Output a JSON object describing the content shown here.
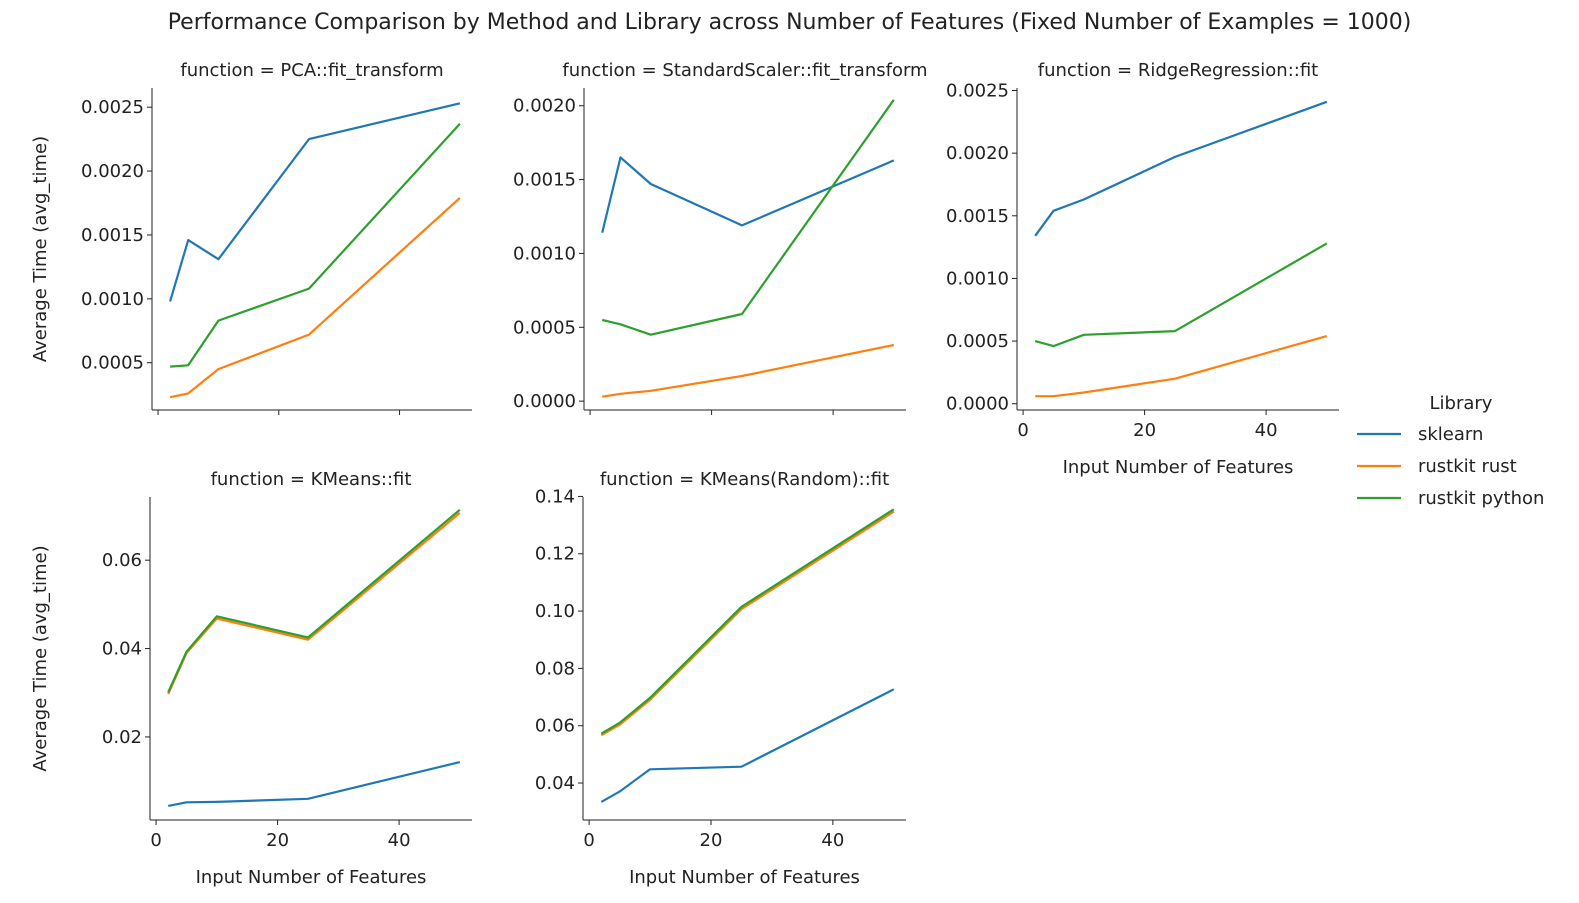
{
  "figure_title": "Performance Comparison by Method and Library across Number of Features (Fixed Number of Examples = 1000)",
  "legend": {
    "title": "Library",
    "entries": [
      {
        "name": "sklearn",
        "color": "#1f77b4"
      },
      {
        "name": "rustkit rust",
        "color": "#ff7f0e"
      },
      {
        "name": "rustkit python",
        "color": "#2ca02c"
      }
    ]
  },
  "chart_data": [
    {
      "type": "line",
      "title": "function = PCA::fit_transform",
      "xlabel": "",
      "ylabel": "Average Time (avg_time)",
      "xlim": [
        -1,
        52
      ],
      "ylim": [
        0.00013,
        0.00265
      ],
      "xticks": [
        0,
        20,
        40
      ],
      "xtick_labels": [
        "",
        "",
        ""
      ],
      "yticks": [
        0.0005,
        0.001,
        0.0015,
        0.002,
        0.0025
      ],
      "ytick_labels": [
        "0.0005",
        "0.0010",
        "0.0015",
        "0.0020",
        "0.0025"
      ],
      "x": [
        2,
        5,
        10,
        25,
        50
      ],
      "series": [
        {
          "name": "sklearn",
          "values": [
            0.00098,
            0.00146,
            0.00131,
            0.00225,
            0.00253
          ]
        },
        {
          "name": "rustkit rust",
          "values": [
            0.00023,
            0.00026,
            0.00045,
            0.00072,
            0.00179
          ]
        },
        {
          "name": "rustkit python",
          "values": [
            0.00047,
            0.00048,
            0.00083,
            0.00108,
            0.00237
          ]
        }
      ]
    },
    {
      "type": "line",
      "title": "function = StandardScaler::fit_transform",
      "xlabel": "",
      "ylabel": "",
      "xlim": [
        -1,
        52
      ],
      "ylim": [
        -6e-05,
        0.00212
      ],
      "xticks": [
        0,
        20,
        40
      ],
      "xtick_labels": [
        "",
        "",
        ""
      ],
      "yticks": [
        0,
        0.0005,
        0.001,
        0.0015,
        0.002
      ],
      "ytick_labels": [
        "0.0000",
        "0.0005",
        "0.0010",
        "0.0015",
        "0.0020"
      ],
      "x": [
        2,
        5,
        10,
        25,
        50
      ],
      "series": [
        {
          "name": "sklearn",
          "values": [
            0.00114,
            0.00165,
            0.00147,
            0.00119,
            0.00163
          ]
        },
        {
          "name": "rustkit rust",
          "values": [
            3e-05,
            5e-05,
            7e-05,
            0.00017,
            0.00038
          ]
        },
        {
          "name": "rustkit python",
          "values": [
            0.00055,
            0.00052,
            0.00045,
            0.00059,
            0.00204
          ]
        }
      ]
    },
    {
      "type": "line",
      "title": "function = RidgeRegression::fit",
      "xlabel": "Input Number of Features",
      "ylabel": "",
      "xlim": [
        -1,
        52
      ],
      "ylim": [
        -5e-05,
        0.00252
      ],
      "xticks": [
        0,
        20,
        40
      ],
      "xtick_labels": [
        "0",
        "20",
        "40"
      ],
      "yticks": [
        0,
        0.0005,
        0.001,
        0.0015,
        0.002,
        0.0025
      ],
      "ytick_labels": [
        "0.0000",
        "0.0005",
        "0.0010",
        "0.0015",
        "0.0020",
        "0.0025"
      ],
      "x": [
        2,
        5,
        10,
        25,
        50
      ],
      "series": [
        {
          "name": "sklearn",
          "values": [
            0.00134,
            0.00154,
            0.00163,
            0.00197,
            0.00241
          ]
        },
        {
          "name": "rustkit rust",
          "values": [
            6e-05,
            6e-05,
            9e-05,
            0.0002,
            0.00054
          ]
        },
        {
          "name": "rustkit python",
          "values": [
            0.0005,
            0.00046,
            0.00055,
            0.00058,
            0.00128
          ]
        }
      ]
    },
    {
      "type": "line",
      "title": "function = KMeans::fit",
      "xlabel": "Input Number of Features",
      "ylabel": "Average Time (avg_time)",
      "xlim": [
        -1,
        52
      ],
      "ylim": [
        0.0012,
        0.0743
      ],
      "xticks": [
        0,
        20,
        40
      ],
      "xtick_labels": [
        "0",
        "20",
        "40"
      ],
      "yticks": [
        0.02,
        0.04,
        0.06
      ],
      "ytick_labels": [
        "0.02",
        "0.04",
        "0.06"
      ],
      "x": [
        2,
        5,
        10,
        25,
        50
      ],
      "series": [
        {
          "name": "sklearn",
          "values": [
            0.0044,
            0.0052,
            0.0053,
            0.006,
            0.0143
          ]
        },
        {
          "name": "rustkit rust",
          "values": [
            0.0297,
            0.039,
            0.0468,
            0.042,
            0.0707
          ]
        },
        {
          "name": "rustkit python",
          "values": [
            0.0301,
            0.0393,
            0.0473,
            0.0425,
            0.0714
          ]
        }
      ]
    },
    {
      "type": "line",
      "title": "function = KMeans(Random)::fit",
      "xlabel": "Input Number of Features",
      "ylabel": "",
      "xlim": [
        -1,
        52
      ],
      "ylim": [
        0.0271,
        0.1398
      ],
      "xticks": [
        0,
        20,
        40
      ],
      "xtick_labels": [
        "0",
        "20",
        "40"
      ],
      "yticks": [
        0.04,
        0.06,
        0.08,
        0.1,
        0.12,
        0.14
      ],
      "ytick_labels": [
        "0.04",
        "0.06",
        "0.08",
        "0.10",
        "0.12",
        "0.14"
      ],
      "x": [
        2,
        5,
        10,
        25,
        50
      ],
      "series": [
        {
          "name": "sklearn",
          "values": [
            0.0334,
            0.037,
            0.0448,
            0.0457,
            0.0727
          ]
        },
        {
          "name": "rustkit rust",
          "values": [
            0.0567,
            0.0603,
            0.069,
            0.1007,
            0.1347
          ]
        },
        {
          "name": "rustkit python",
          "values": [
            0.0572,
            0.061,
            0.0697,
            0.1015,
            0.1355
          ]
        }
      ]
    }
  ]
}
